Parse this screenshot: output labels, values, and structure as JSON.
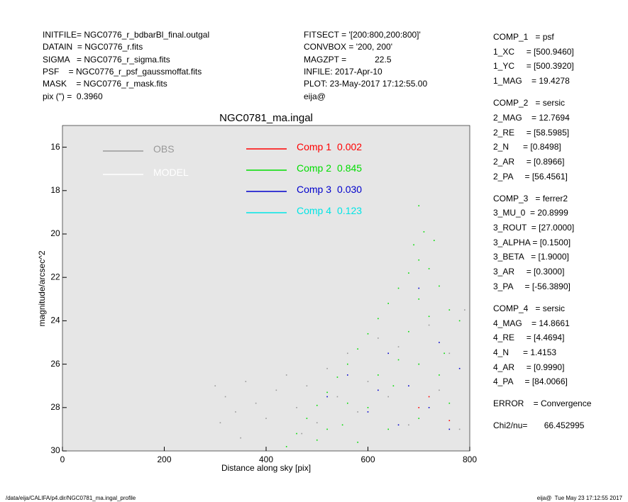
{
  "header": {
    "left": [
      "INITFILE= NGC0776_r_bdbarBl_final.outgal",
      "DATAIN  = NGC0776_r.fits",
      "SIGMA   = NGC0776_r_sigma.fits",
      "PSF    = NGC0776_r_psf_gaussmoffat.fits",
      "MASK    = NGC0776_r_mask.fits",
      "pix (\") =  0.3960"
    ],
    "middle": [
      "FITSECT = '[200:800,200:800]'",
      "CONVBOX = '200, 200'",
      "MAGZPT =            22.5",
      "INFILE: 2017-Apr-10",
      "PLOT: 23-May-2017 17:12:55.00",
      "eija@"
    ]
  },
  "parameters": [
    [
      "COMP_1   = psf",
      "1_XC     = [500.9460]",
      "1_YC     = [500.3920]",
      "1_MAG    = 19.4278"
    ],
    [
      "COMP_2   = sersic",
      "2_MAG    = 12.7694",
      "2_RE     = [58.5985]",
      "2_N      = [0.8498]",
      "2_AR     = [0.8966]",
      "2_PA     = [56.4561]"
    ],
    [
      "COMP_3   = ferrer2",
      "3_MU_0  = 20.8999",
      "3_ROUT  = [27.0000]",
      "3_ALPHA = [0.1500]",
      "3_BETA   = [1.9000]",
      "3_AR     = [0.3000]",
      "3_PA     = [-56.3890]"
    ],
    [
      "COMP_4   = sersic",
      "4_MAG    = 14.8661",
      "4_RE     = [4.4694]",
      "4_N      = 1.4153",
      "4_AR     = [0.9990]",
      "4_PA     = [84.0066]"
    ],
    [
      "ERROR    = Convergence"
    ],
    [
      "Chi2/nu=       66.452995"
    ]
  ],
  "footer": {
    "left": "/data/eija/CALIFA/p4.dir/NGC0781_ma.ingal_profile",
    "right": "eija@  Tue May 23 17:12:55 2017"
  },
  "chart_data": {
    "type": "scatter",
    "title": "NGC0781_ma.ingal",
    "x_label": "Distance along sky [pix]",
    "y_label": "magnitude/arcsec^2",
    "xlim": [
      0,
      800
    ],
    "ylim": [
      30,
      15
    ],
    "xticks": [
      0,
      200,
      400,
      600,
      800
    ],
    "yticks": [
      16,
      18,
      20,
      22,
      24,
      26,
      28,
      30
    ],
    "background": "#e6e6e6",
    "series": [
      {
        "name": "OBS",
        "color": "#999999",
        "legend_value": null,
        "x": [
          300,
          320,
          340,
          360,
          380,
          400,
          420,
          440,
          460,
          480,
          500,
          520,
          540,
          560,
          580,
          600,
          620,
          640,
          660,
          680,
          700,
          720,
          740,
          760,
          780,
          790,
          310,
          350,
          470
        ],
        "values": [
          27.0,
          27.5,
          28.2,
          26.8,
          27.8,
          28.5,
          27.2,
          26.5,
          28.0,
          27.0,
          28.7,
          26.2,
          27.5,
          25.5,
          28.2,
          26.8,
          24.8,
          27.5,
          25.2,
          28.8,
          26.0,
          24.2,
          27.2,
          25.5,
          29.0,
          23.5,
          28.7,
          29.4,
          29.2
        ]
      },
      {
        "name": "MODEL",
        "color": "#ffffff",
        "legend_value": null,
        "x": [],
        "values": []
      },
      {
        "name": "Comp 1",
        "color": "#ff0000",
        "legend_value": 0.002,
        "x": [
          700,
          720,
          760
        ],
        "values": [
          28.0,
          27.5,
          28.6
        ]
      },
      {
        "name": "Comp 2",
        "color": "#00dd00",
        "legend_value": 0.845,
        "x": [
          440,
          460,
          480,
          500,
          520,
          540,
          560,
          580,
          600,
          620,
          640,
          660,
          680,
          700,
          720,
          740,
          760,
          780,
          500,
          550,
          600,
          650,
          700,
          750,
          580,
          640,
          700,
          760,
          620,
          680,
          720,
          660,
          700,
          740,
          690,
          710,
          700,
          730,
          560,
          520
        ],
        "values": [
          29.8,
          29.2,
          28.5,
          27.9,
          27.3,
          26.6,
          26.0,
          25.3,
          24.6,
          23.9,
          23.2,
          22.5,
          21.8,
          21.2,
          21.6,
          22.4,
          23.5,
          24.0,
          29.5,
          28.8,
          28.0,
          27.0,
          26.0,
          25.5,
          29.6,
          29.0,
          28.5,
          27.8,
          26.5,
          24.5,
          23.8,
          25.8,
          23.0,
          26.5,
          20.5,
          19.9,
          18.7,
          20.3,
          27.8,
          29.0
        ]
      },
      {
        "name": "Comp 3",
        "color": "#0000cc",
        "legend_value": {
          "value": 0.03,
          "label": "0.030"
        },
        "x": [
          520,
          560,
          600,
          640,
          680,
          700,
          720,
          740,
          760,
          780,
          660,
          620
        ],
        "values": [
          27.5,
          26.5,
          28.2,
          25.5,
          27.0,
          22.5,
          28.0,
          25.0,
          29.0,
          26.2,
          28.8,
          27.2
        ]
      },
      {
        "name": "Comp 4",
        "color": "#00e5e5",
        "legend_value": 0.123,
        "x": [],
        "values": []
      }
    ]
  }
}
